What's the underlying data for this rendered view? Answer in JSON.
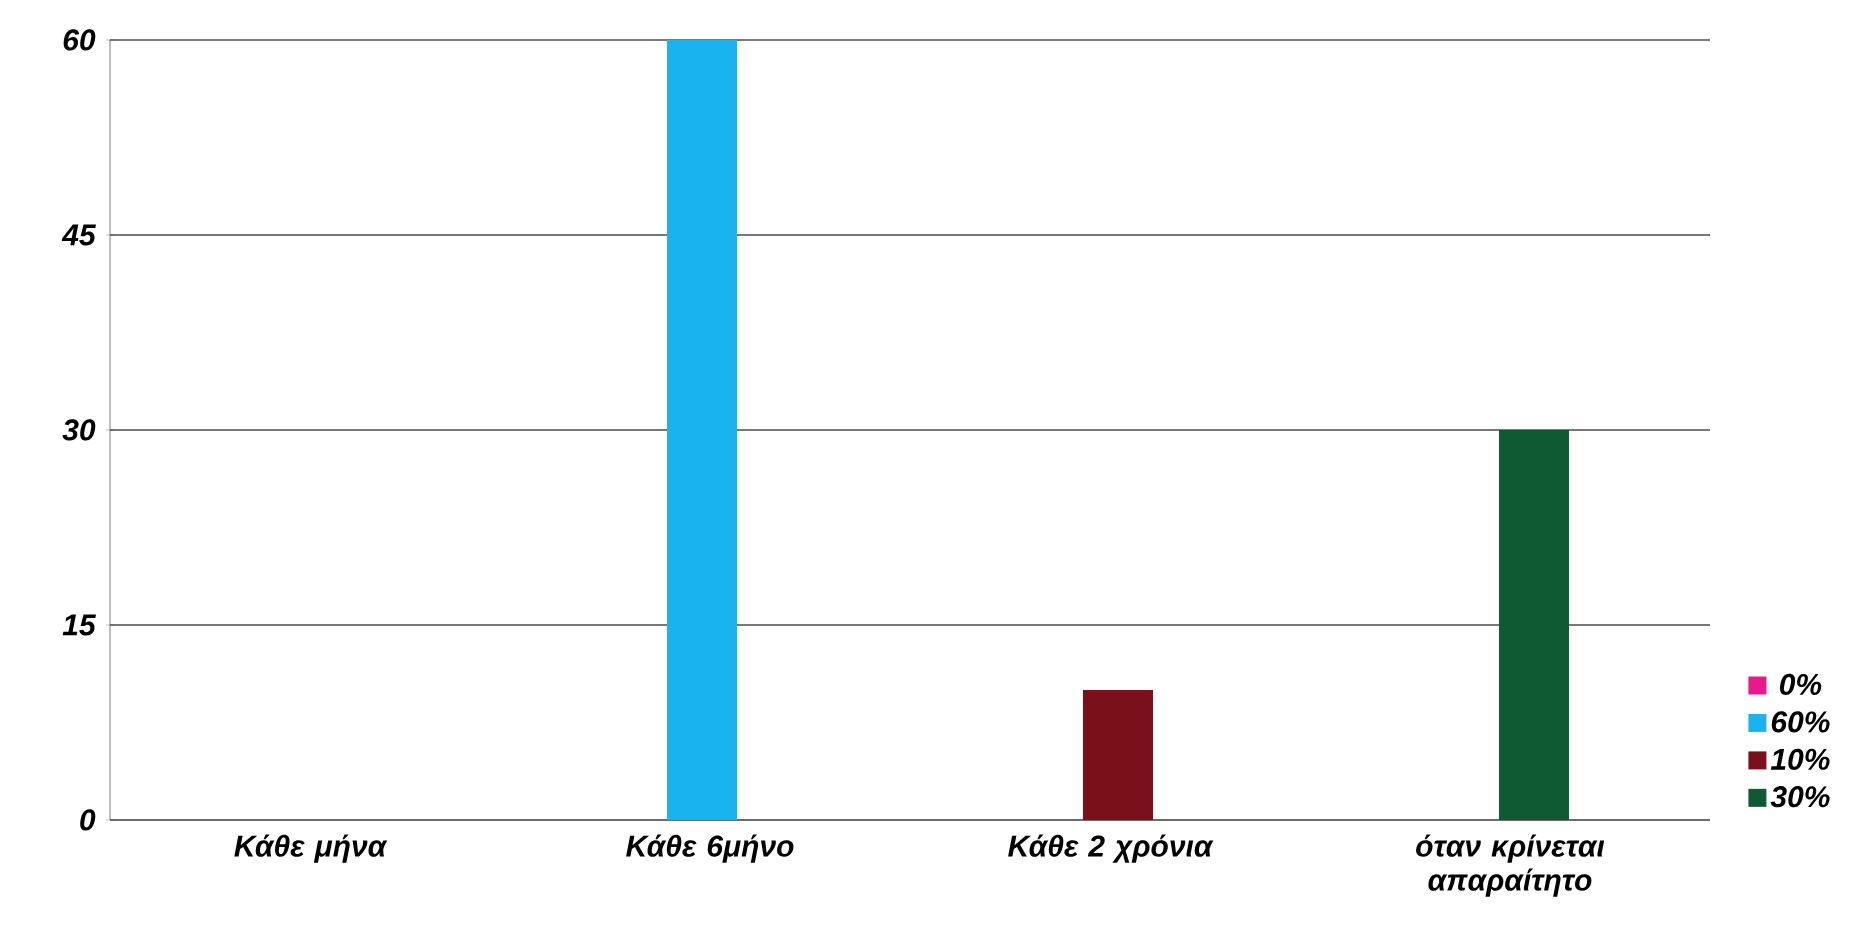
{
  "chart_data": {
    "type": "bar",
    "categories": [
      "Κάθε μήνα",
      "Κάθε 6μήνο",
      "Κάθε 2 χρόνια",
      "όταν κρίνεται απαραίτητο"
    ],
    "series": [
      {
        "name": "0%",
        "color": "#e8198b",
        "values": [
          0,
          null,
          null,
          null
        ]
      },
      {
        "name": "60%",
        "color": "#19b4f0",
        "values": [
          null,
          60,
          null,
          null
        ]
      },
      {
        "name": "10%",
        "color": "#7a1019",
        "values": [
          null,
          null,
          10,
          null
        ]
      },
      {
        "name": "30%",
        "color": "#0f5a32",
        "values": [
          null,
          null,
          null,
          30
        ]
      }
    ],
    "ylim": [
      0,
      60
    ],
    "yticks": [
      0,
      15,
      30,
      45,
      60
    ],
    "grid": "y",
    "legend": "right"
  }
}
